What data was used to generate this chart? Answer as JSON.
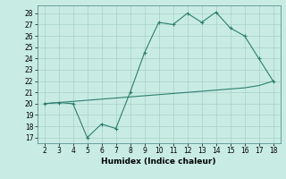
{
  "xlabel": "Humidex (Indice chaleur)",
  "x": [
    2,
    3,
    4,
    5,
    6,
    7,
    8,
    9,
    10,
    11,
    12,
    13,
    14,
    15,
    16,
    17,
    18
  ],
  "y_curve": [
    20.0,
    20.1,
    20.0,
    17.0,
    18.2,
    17.8,
    21.0,
    24.5,
    27.2,
    27.0,
    28.0,
    27.2,
    28.1,
    26.7,
    26.0,
    24.0,
    22.0
  ],
  "y_trend": [
    20.0,
    20.1,
    20.2,
    20.3,
    20.4,
    20.5,
    20.6,
    20.7,
    20.8,
    20.9,
    21.0,
    21.1,
    21.2,
    21.3,
    21.4,
    21.6,
    22.0
  ],
  "line_color": "#2e7d6e",
  "bg_color": "#c8ece4",
  "grid_color": "#a8d0c8",
  "xlim": [
    1.5,
    18.5
  ],
  "ylim": [
    16.5,
    28.7
  ],
  "yticks": [
    17,
    18,
    19,
    20,
    21,
    22,
    23,
    24,
    25,
    26,
    27,
    28
  ],
  "xticks": [
    2,
    3,
    4,
    5,
    6,
    7,
    8,
    9,
    10,
    11,
    12,
    13,
    14,
    15,
    16,
    17,
    18
  ],
  "tick_fontsize": 5.5,
  "xlabel_fontsize": 6.5
}
